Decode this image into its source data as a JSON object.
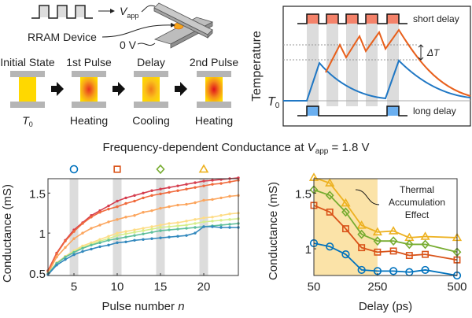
{
  "schematic": {
    "vapp_label": "V",
    "vapp_sub": "app",
    "device_label": "RRAM Device",
    "ground_label": "0 V",
    "stages": [
      {
        "title": "Initial State",
        "caption": "T",
        "caption_sub": "0"
      },
      {
        "title": "1st Pulse",
        "caption": "Heating"
      },
      {
        "title": "Delay",
        "caption": "Cooling"
      },
      {
        "title": "2nd Pulse",
        "caption": "Heating"
      }
    ]
  },
  "temperature_panel": {
    "ylabel": "Temperature",
    "t0_label": "T",
    "t0_sub": "0",
    "short_delay_label": "short delay",
    "long_delay_label": "long delay",
    "delta_label": "ΔT",
    "colors": {
      "short": "#e8601c",
      "long": "#1f77c4",
      "short_pulse_fill": "#f4826a",
      "long_pulse_fill": "#6aaff0"
    }
  },
  "title": {
    "text": "Frequency-dependent Conductance at ",
    "var": "V",
    "var_sub": "app",
    "suffix": " = 1.8 V"
  },
  "chart_data": [
    {
      "type": "line",
      "xlabel": "Pulse number n",
      "ylabel": "Conductance (mS)",
      "xlim": [
        2,
        24
      ],
      "ylim": [
        0.47,
        1.68
      ],
      "xticks": [
        5,
        10,
        15,
        20
      ],
      "yticks": [
        0.5,
        1,
        1.5
      ],
      "ytick_labels": [
        "0.5",
        "1",
        "1.5"
      ],
      "highlight_pulses": [
        5,
        10,
        15,
        20
      ],
      "marker_legend": [
        {
          "n": 5,
          "marker": "circle",
          "color": "#0072bd"
        },
        {
          "n": 10,
          "marker": "square",
          "color": "#d95319"
        },
        {
          "n": 15,
          "marker": "diamond",
          "color": "#77ac30"
        },
        {
          "n": 20,
          "marker": "triangle",
          "color": "#edb120"
        }
      ],
      "x": [
        2,
        3,
        4,
        5,
        6,
        7,
        8,
        9,
        10,
        11,
        12,
        13,
        14,
        15,
        16,
        17,
        18,
        19,
        20,
        21,
        22,
        23,
        24
      ],
      "series": [
        {
          "color": "#d53e4f",
          "values": [
            0.53,
            0.75,
            0.91,
            1.04,
            1.13,
            1.22,
            1.28,
            1.34,
            1.4,
            1.44,
            1.47,
            1.5,
            1.53,
            1.55,
            1.57,
            1.59,
            1.61,
            1.63,
            1.65,
            1.66,
            1.67,
            1.68,
            1.69
          ]
        },
        {
          "color": "#f06a3c",
          "values": [
            0.52,
            0.74,
            0.9,
            1.02,
            1.12,
            1.2,
            1.26,
            1.3,
            1.33,
            1.37,
            1.4,
            1.44,
            1.47,
            1.49,
            1.51,
            1.53,
            1.55,
            1.57,
            1.59,
            1.61,
            1.62,
            1.64,
            1.66
          ]
        },
        {
          "color": "#fca55d",
          "values": [
            0.5,
            0.7,
            0.82,
            0.93,
            1.0,
            1.06,
            1.1,
            1.14,
            1.17,
            1.2,
            1.22,
            1.26,
            1.28,
            1.31,
            1.33,
            1.35,
            1.36,
            1.38,
            1.41,
            1.42,
            1.44,
            1.46,
            1.47
          ]
        },
        {
          "color": "#fedc86",
          "values": [
            0.49,
            0.63,
            0.71,
            0.78,
            0.84,
            0.88,
            0.92,
            0.96,
            1.0,
            1.02,
            1.04,
            1.06,
            1.08,
            1.1,
            1.12,
            1.13,
            1.15,
            1.17,
            1.19,
            1.2,
            1.22,
            1.24,
            1.25
          ]
        },
        {
          "color": "#d6ee8b",
          "values": [
            0.49,
            0.62,
            0.7,
            0.77,
            0.82,
            0.86,
            0.9,
            0.93,
            0.97,
            0.99,
            1.01,
            1.03,
            1.05,
            1.07,
            1.08,
            1.09,
            1.1,
            1.12,
            1.14,
            1.15,
            1.16,
            1.17,
            1.18
          ]
        },
        {
          "color": "#5fbf9c",
          "values": [
            0.49,
            0.62,
            0.7,
            0.76,
            0.81,
            0.85,
            0.88,
            0.91,
            0.93,
            0.95,
            0.97,
            0.99,
            1.01,
            1.03,
            1.04,
            1.05,
            1.06,
            1.07,
            1.08,
            1.09,
            1.1,
            1.11,
            1.12
          ]
        },
        {
          "color": "#3288bd",
          "values": [
            0.48,
            0.6,
            0.67,
            0.73,
            0.77,
            0.8,
            0.83,
            0.85,
            0.88,
            0.89,
            0.91,
            0.92,
            0.93,
            0.94,
            0.95,
            0.96,
            0.97,
            1.0,
            1.08,
            1.08,
            1.07,
            1.07,
            1.07
          ]
        }
      ]
    },
    {
      "type": "line",
      "xlabel": "Delay (ps)",
      "ylabel": "Conductance (mS)",
      "xlim": [
        50,
        500
      ],
      "ylim": [
        0.76,
        1.63
      ],
      "xticks": [
        50,
        250,
        500
      ],
      "yticks": [
        1,
        1.5
      ],
      "ytick_labels": [
        "1",
        "1.5"
      ],
      "shaded_region": {
        "x": [
          50,
          250
        ],
        "color": "#fbe3a8",
        "label": [
          "Thermal",
          "Accumulation",
          "Effect"
        ]
      },
      "x": [
        50,
        100,
        150,
        200,
        250,
        300,
        350,
        400,
        500
      ],
      "series": [
        {
          "marker": "triangle",
          "color": "#edb120",
          "values": [
            1.64,
            1.59,
            1.41,
            1.21,
            1.15,
            1.16,
            1.1,
            1.11,
            1.1
          ]
        },
        {
          "marker": "diamond",
          "color": "#77ac30",
          "values": [
            1.53,
            1.48,
            1.33,
            1.13,
            1.07,
            1.07,
            1.04,
            1.04,
            0.97
          ]
        },
        {
          "marker": "square",
          "color": "#d95319",
          "values": [
            1.39,
            1.33,
            1.18,
            1.01,
            0.97,
            0.98,
            0.94,
            0.95,
            0.9
          ]
        },
        {
          "marker": "circle",
          "color": "#0072bd",
          "values": [
            1.05,
            1.02,
            0.95,
            0.81,
            0.8,
            0.8,
            0.79,
            0.81,
            0.76
          ]
        }
      ]
    }
  ]
}
